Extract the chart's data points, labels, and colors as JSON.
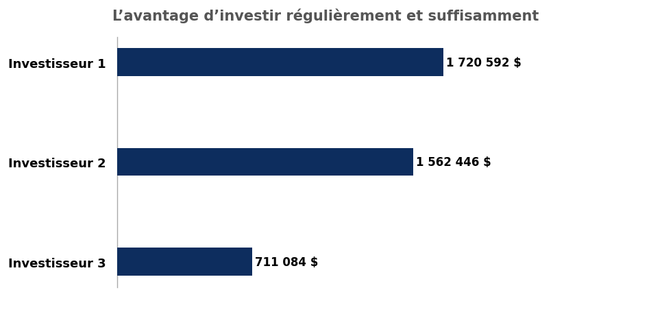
{
  "title": "L’avantage d’investir régulièrement et suffisamment",
  "categories": [
    "Investisseur 3",
    "Investisseur 2",
    "Investisseur 1"
  ],
  "values": [
    711084,
    1562446,
    1720592
  ],
  "labels": [
    "711 084 $",
    "1 562 446 $",
    "1 720 592 $"
  ],
  "bar_color": "#0d2d5e",
  "background_color": "#ffffff",
  "title_fontsize": 15,
  "label_fontsize": 12,
  "category_fontsize": 13,
  "xlim": [
    0,
    2200000
  ],
  "bar_height": 0.28,
  "title_color": "#555555",
  "spine_color": "#aaaaaa"
}
